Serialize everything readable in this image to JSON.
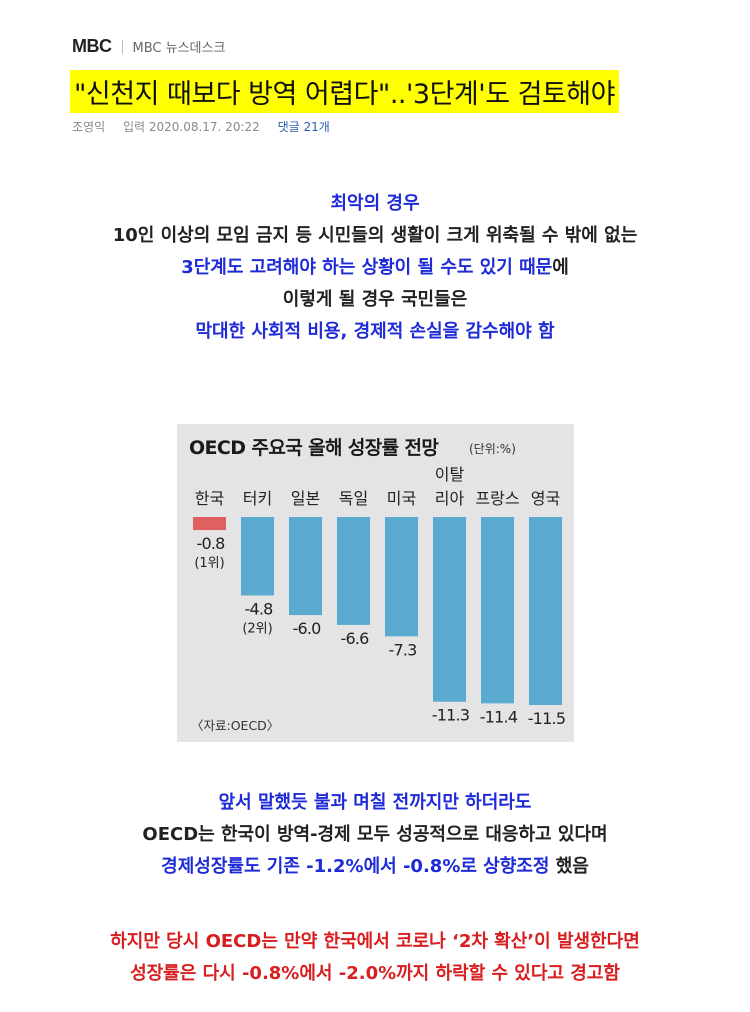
{
  "header": {
    "logo": "MBC",
    "section": "MBC 뉴스데스크"
  },
  "article": {
    "title": "\"신천지 때보다 방역 어렵다\"..'3단계'도 검토해야",
    "author": "조영익",
    "date_label": "입력 2020.08.17. 20:22",
    "comments_label": "댓글 21개"
  },
  "paragraph1": [
    {
      "text": "최악의 경우",
      "color": "blue"
    },
    {
      "text": "10인 이상의 모임 금지 등 시민들의 생활이 크게 위축될 수 밖에 없는",
      "color": "black"
    },
    {
      "text": "3단계도 고려해야 하는 상황이 될 수도 있기 때문",
      "suffix": "에",
      "color": "blue"
    },
    {
      "text": "이렇게 될 경우 국민들은",
      "color": "black"
    },
    {
      "text": "막대한 사회적 비용, 경제적 손실을 감수해야 함",
      "color": "blue"
    }
  ],
  "chart_data": {
    "type": "bar",
    "title": "OECD 주요국 올해 성장률 전망",
    "unit": "(단위:%)",
    "source": "〈자료:OECD〉",
    "categories": [
      "한국",
      "터키",
      "일본",
      "독일",
      "미국",
      "이탈리아",
      "프랑스",
      "영국"
    ],
    "category_lines": [
      [
        "한국"
      ],
      [
        "터키"
      ],
      [
        "일본"
      ],
      [
        "독일"
      ],
      [
        "미국"
      ],
      [
        "이탈",
        "리아"
      ],
      [
        "프랑스"
      ],
      [
        "영국"
      ]
    ],
    "values": [
      -0.8,
      -4.8,
      -6.0,
      -6.6,
      -7.3,
      -11.3,
      -11.4,
      -11.5
    ],
    "value_labels": [
      "-0.8",
      "-4.8",
      "-6.0",
      "-6.6",
      "-7.3",
      "-11.3",
      "-11.4",
      "-11.5"
    ],
    "rank_labels": [
      "(1위)",
      "(2위)",
      "",
      "",
      "",
      "",
      "",
      ""
    ],
    "colors": {
      "highlight": "#e06060",
      "bar": "#5aaad0"
    },
    "ylim": [
      -11.5,
      0
    ]
  },
  "paragraph2": [
    {
      "text": "앞서 말했듯 불과 며칠 전까지만 하더라도",
      "color": "blue"
    },
    {
      "text": "OECD는 한국이 방역-경제 모두 성공적으로 대응하고 있다며",
      "color": "black"
    },
    {
      "text": "경제성장률도 기존 -1.2%에서 -0.8%로 상향조정",
      "suffix": " 했음",
      "color": "blue"
    }
  ],
  "paragraph3": [
    {
      "text": "하지만 당시 OECD는 만약 한국에서 코로나 ‘2차 확산’이 발생한다면",
      "color": "red"
    },
    {
      "text": "성장률은 다시 -0.8%에서 -2.0%까지 하락할 수 있다고 경고함",
      "color": "red"
    }
  ]
}
